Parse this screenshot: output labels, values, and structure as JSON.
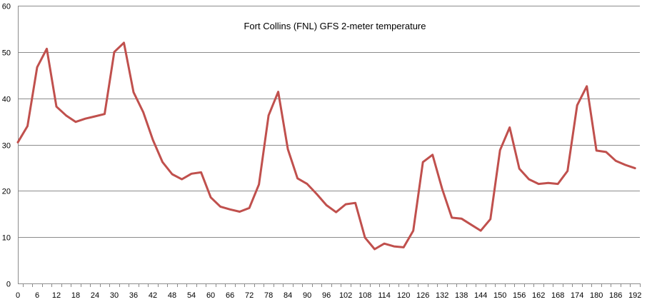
{
  "chart_data": {
    "type": "line",
    "title": "Fort Collins (FNL) GFS 2-meter temperature",
    "xlabel": "",
    "ylabel": "",
    "xlim": [
      0,
      193.5
    ],
    "ylim": [
      0,
      60
    ],
    "yticks": [
      0,
      10,
      20,
      30,
      40,
      50,
      60
    ],
    "xticks": [
      0,
      6,
      12,
      18,
      24,
      30,
      36,
      42,
      48,
      54,
      60,
      66,
      72,
      78,
      84,
      90,
      96,
      102,
      108,
      114,
      120,
      126,
      132,
      138,
      144,
      150,
      156,
      162,
      168,
      174,
      180,
      186,
      192
    ],
    "grid": "horizontal",
    "legend": "none",
    "line_color": "#c0504d",
    "series": [
      {
        "x": [
          0,
          3,
          6,
          9,
          12,
          15,
          18,
          21,
          24,
          27,
          30,
          33,
          36,
          39,
          42,
          45,
          48,
          51,
          54,
          57,
          60,
          63,
          66,
          69,
          72,
          75,
          78,
          81,
          84,
          87,
          90,
          93,
          96,
          99,
          102,
          105,
          108,
          111,
          114,
          117,
          120,
          123,
          126,
          129,
          132,
          135,
          138,
          141,
          144,
          147,
          150,
          153,
          156,
          159,
          162,
          165,
          168,
          171,
          174,
          177,
          180,
          183,
          186,
          189,
          192
        ],
        "values": [
          30.5,
          34,
          46.7,
          50.7,
          38.2,
          36.3,
          34.9,
          35.6,
          36.1,
          36.6,
          50,
          52,
          41.3,
          37,
          31,
          26.2,
          23.6,
          22.5,
          23.7,
          24,
          18.6,
          16.6,
          16,
          15.5,
          16.3,
          21.4,
          36.3,
          41.4,
          29,
          22.7,
          21.5,
          19.3,
          16.9,
          15.4,
          17.1,
          17.4,
          9.9,
          7.4,
          8.6,
          8,
          7.8,
          11.4,
          26.2,
          27.8,
          20.4,
          14.2,
          14,
          12.7,
          11.4,
          13.9,
          28.8,
          33.7,
          24.8,
          22.5,
          21.5,
          21.7,
          21.5,
          24.3,
          38.5,
          42.6,
          28.7,
          28.4,
          26.5,
          25.6,
          24.9
        ]
      }
    ]
  }
}
